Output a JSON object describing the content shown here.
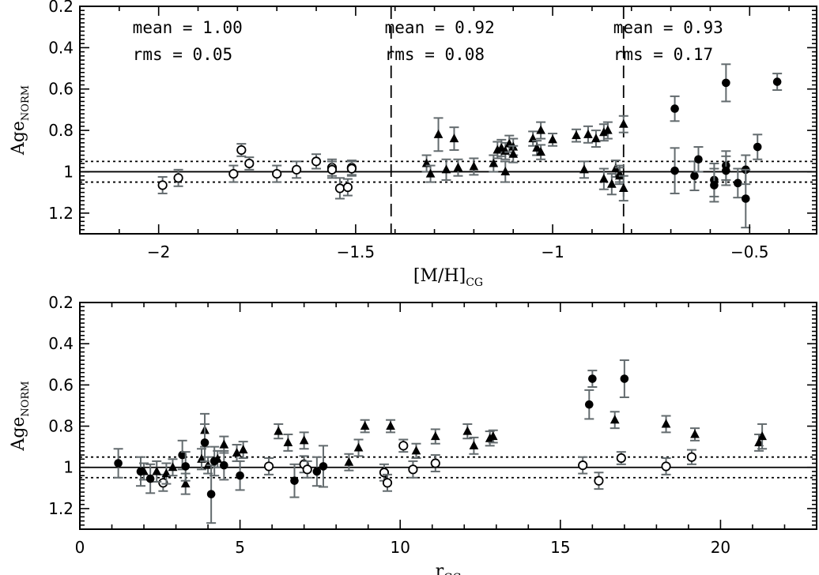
{
  "chart_data": [
    {
      "type": "scatter",
      "xlabel": "[M/H]",
      "xlabel_sub": "CG",
      "ylabel": "Age",
      "ylabel_sub": "NORM",
      "xlim": [
        -2.2,
        -0.33
      ],
      "ylim": [
        1.3,
        0.2
      ],
      "xticks": [
        -2,
        -1.5,
        -1,
        -0.5
      ],
      "xtick_labels": [
        "−2",
        "−1.5",
        "−1",
        "−0.5"
      ],
      "yticks": [
        0.2,
        0.4,
        0.6,
        0.8,
        1.0,
        1.2
      ],
      "ytick_labels": [
        "0.2",
        "0.4",
        "0.6",
        "0.8",
        "1",
        "1.2"
      ],
      "reference_line": 1.0,
      "dotted_lines": [
        0.95,
        1.05
      ],
      "dividers": [
        -1.41,
        -0.82
      ],
      "annotations": [
        {
          "mean": "mean = 1.00",
          "rms": "rms = 0.05",
          "x": -2.0
        },
        {
          "mean": "mean = 0.92",
          "rms": "rms = 0.08",
          "x": -1.36
        },
        {
          "mean": "mean = 0.93",
          "rms": "rms = 0.17",
          "x": -0.78
        }
      ],
      "series": [
        {
          "name": "open-circles",
          "marker": "open-circle",
          "points": [
            [
              -1.99,
              1.065,
              0.04
            ],
            [
              -1.95,
              1.03,
              0.04
            ],
            [
              -1.81,
              1.01,
              0.04
            ],
            [
              -1.79,
              0.895,
              0.03
            ],
            [
              -1.77,
              0.96,
              0.03
            ],
            [
              -1.7,
              1.01,
              0.04
            ],
            [
              -1.65,
              0.99,
              0.04
            ],
            [
              -1.6,
              0.95,
              0.035
            ],
            [
              -1.56,
              0.98,
              0.04
            ],
            [
              -1.56,
              0.99,
              0.04
            ],
            [
              -1.54,
              1.08,
              0.05
            ],
            [
              -1.52,
              1.075,
              0.04
            ],
            [
              -1.51,
              0.98,
              0.035
            ],
            [
              -1.51,
              0.985,
              0.035
            ]
          ]
        },
        {
          "name": "triangles",
          "marker": "triangle",
          "points": [
            [
              -1.32,
              0.96,
              0.04
            ],
            [
              -1.31,
              1.01,
              0.04
            ],
            [
              -1.29,
              0.82,
              0.08
            ],
            [
              -1.27,
              0.99,
              0.05
            ],
            [
              -1.25,
              0.84,
              0.055
            ],
            [
              -1.24,
              0.98,
              0.04
            ],
            [
              -1.2,
              0.975,
              0.04
            ],
            [
              -1.15,
              0.96,
              0.04
            ],
            [
              -1.14,
              0.895,
              0.04
            ],
            [
              -1.13,
              0.885,
              0.04
            ],
            [
              -1.12,
              0.9,
              0.04
            ],
            [
              -1.12,
              1.0,
              0.05
            ],
            [
              -1.11,
              0.865,
              0.04
            ],
            [
              -1.1,
              0.88,
              0.04
            ],
            [
              -1.1,
              0.915,
              0.04
            ],
            [
              -1.05,
              0.84,
              0.035
            ],
            [
              -1.04,
              0.885,
              0.035
            ],
            [
              -1.03,
              0.8,
              0.04
            ],
            [
              -1.03,
              0.905,
              0.035
            ],
            [
              -1.0,
              0.845,
              0.03
            ],
            [
              -0.94,
              0.825,
              0.03
            ],
            [
              -0.92,
              0.99,
              0.04
            ],
            [
              -0.91,
              0.82,
              0.04
            ],
            [
              -0.89,
              0.84,
              0.04
            ],
            [
              -0.87,
              0.81,
              0.04
            ],
            [
              -0.86,
              0.8,
              0.04
            ],
            [
              -0.87,
              1.035,
              0.05
            ],
            [
              -0.85,
              1.06,
              0.05
            ],
            [
              -0.84,
              0.985,
              0.04
            ],
            [
              -0.83,
              1.01,
              0.04
            ],
            [
              -0.83,
              1.02,
              0.04
            ],
            [
              -0.82,
              0.77,
              0.04
            ],
            [
              -0.82,
              1.08,
              0.06
            ]
          ]
        },
        {
          "name": "filled-circles",
          "marker": "filled-circle",
          "points": [
            [
              -0.69,
              0.695,
              0.06
            ],
            [
              -0.69,
              0.995,
              0.11
            ],
            [
              -0.64,
              1.02,
              0.07
            ],
            [
              -0.63,
              0.94,
              0.06
            ],
            [
              -0.59,
              1.04,
              0.08
            ],
            [
              -0.59,
              1.065,
              0.08
            ],
            [
              -0.56,
              0.57,
              0.09
            ],
            [
              -0.56,
              0.97,
              0.07
            ],
            [
              -0.56,
              0.995,
              0.07
            ],
            [
              -0.53,
              1.055,
              0.07
            ],
            [
              -0.51,
              0.99,
              0.07
            ],
            [
              -0.51,
              1.13,
              0.14
            ],
            [
              -0.48,
              0.88,
              0.06
            ],
            [
              -0.43,
              0.565,
              0.04
            ]
          ]
        }
      ]
    },
    {
      "type": "scatter",
      "xlabel": "r",
      "xlabel_sub": "GC",
      "ylabel": "Age",
      "ylabel_sub": "NORM",
      "xlim": [
        0,
        23
      ],
      "ylim": [
        1.3,
        0.2
      ],
      "xticks": [
        0,
        5,
        10,
        15,
        20
      ],
      "xtick_labels": [
        "0",
        "5",
        "10",
        "15",
        "20"
      ],
      "yticks": [
        0.2,
        0.4,
        0.6,
        0.8,
        1.0,
        1.2
      ],
      "ytick_labels": [
        "0.2",
        "0.4",
        "0.6",
        "0.8",
        "1",
        "1.2"
      ],
      "reference_line": 1.0,
      "dotted_lines": [
        0.95,
        1.05
      ],
      "series": [
        {
          "name": "open-circles",
          "marker": "open-circle",
          "points": [
            [
              2.6,
              1.075,
              0.04
            ],
            [
              5.9,
              0.995,
              0.04
            ],
            [
              7.0,
              0.985,
              0.04
            ],
            [
              7.1,
              1.01,
              0.04
            ],
            [
              9.5,
              1.025,
              0.04
            ],
            [
              9.6,
              1.075,
              0.04
            ],
            [
              10.1,
              0.895,
              0.03
            ],
            [
              10.4,
              1.01,
              0.04
            ],
            [
              11.1,
              0.98,
              0.04
            ],
            [
              15.7,
              0.99,
              0.04
            ],
            [
              16.2,
              1.065,
              0.04
            ],
            [
              16.9,
              0.955,
              0.03
            ],
            [
              18.3,
              0.995,
              0.04
            ],
            [
              19.1,
              0.95,
              0.035
            ]
          ]
        },
        {
          "name": "triangles",
          "marker": "triangle",
          "points": [
            [
              2.0,
              1.02,
              0.04
            ],
            [
              2.4,
              1.02,
              0.05
            ],
            [
              2.7,
              1.03,
              0.05
            ],
            [
              2.9,
              1.0,
              0.04
            ],
            [
              3.3,
              1.08,
              0.05
            ],
            [
              3.8,
              0.96,
              0.05
            ],
            [
              3.9,
              0.82,
              0.08
            ],
            [
              4.0,
              0.99,
              0.04
            ],
            [
              4.3,
              0.96,
              0.04
            ],
            [
              4.5,
              0.89,
              0.04
            ],
            [
              4.9,
              0.93,
              0.04
            ],
            [
              5.1,
              0.915,
              0.04
            ],
            [
              6.2,
              0.825,
              0.035
            ],
            [
              6.5,
              0.88,
              0.04
            ],
            [
              7.0,
              0.87,
              0.04
            ],
            [
              8.4,
              0.975,
              0.04
            ],
            [
              8.7,
              0.905,
              0.04
            ],
            [
              8.9,
              0.8,
              0.03
            ],
            [
              9.7,
              0.8,
              0.03
            ],
            [
              10.5,
              0.92,
              0.035
            ],
            [
              11.1,
              0.85,
              0.035
            ],
            [
              12.1,
              0.825,
              0.035
            ],
            [
              12.3,
              0.895,
              0.04
            ],
            [
              12.8,
              0.86,
              0.035
            ],
            [
              12.9,
              0.85,
              0.03
            ],
            [
              16.7,
              0.77,
              0.04
            ],
            [
              18.3,
              0.79,
              0.04
            ],
            [
              19.2,
              0.84,
              0.03
            ],
            [
              21.2,
              0.88,
              0.04
            ],
            [
              21.3,
              0.85,
              0.06
            ]
          ]
        },
        {
          "name": "filled-circles",
          "marker": "filled-circle",
          "points": [
            [
              1.2,
              0.98,
              0.07
            ],
            [
              1.9,
              1.02,
              0.07
            ],
            [
              2.2,
              1.055,
              0.07
            ],
            [
              3.2,
              0.94,
              0.07
            ],
            [
              3.3,
              0.995,
              0.07
            ],
            [
              3.9,
              0.88,
              0.09
            ],
            [
              4.1,
              1.13,
              0.14
            ],
            [
              4.2,
              0.97,
              0.07
            ],
            [
              4.5,
              0.99,
              0.07
            ],
            [
              5.0,
              1.04,
              0.07
            ],
            [
              6.7,
              1.065,
              0.08
            ],
            [
              7.4,
              1.02,
              0.07
            ],
            [
              7.6,
              0.995,
              0.1
            ],
            [
              15.9,
              0.695,
              0.07
            ],
            [
              16.0,
              0.57,
              0.04
            ],
            [
              17.0,
              0.57,
              0.09
            ]
          ]
        }
      ]
    }
  ]
}
